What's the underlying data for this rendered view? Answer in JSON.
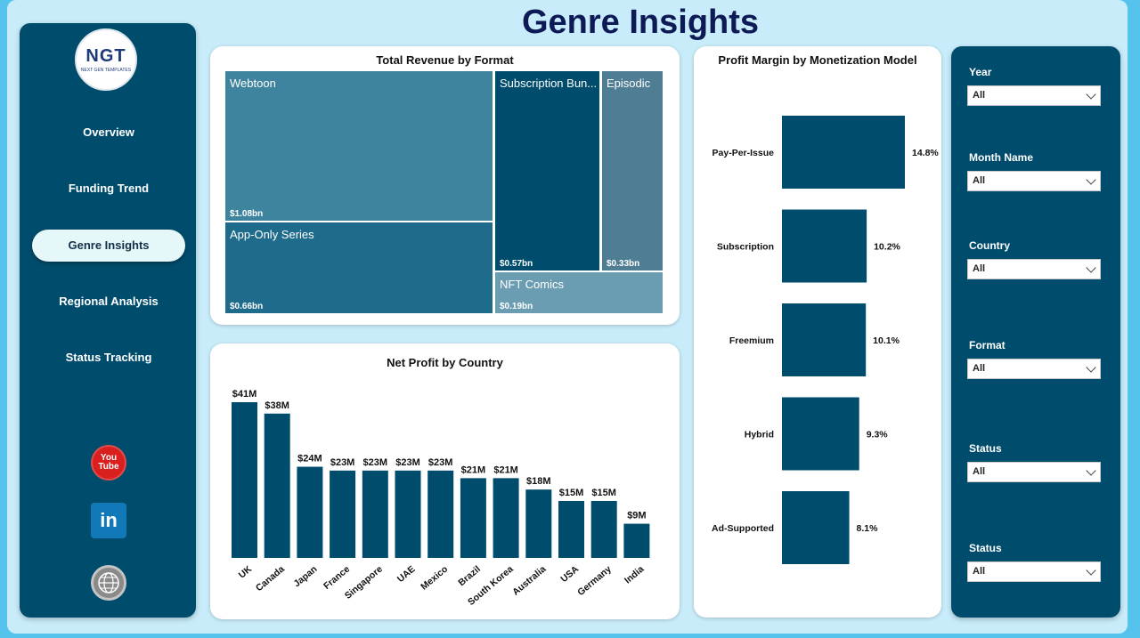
{
  "page": {
    "title": "Genre Insights"
  },
  "logo": {
    "main": "NGT",
    "sub": "NEXT GEN TEMPLATES"
  },
  "nav": {
    "items": [
      {
        "label": "Overview",
        "active": false
      },
      {
        "label": "Funding Trend",
        "active": false
      },
      {
        "label": "Genre Insights",
        "active": true
      },
      {
        "label": "Regional Analysis",
        "active": false
      },
      {
        "label": "Status Tracking",
        "active": false
      }
    ]
  },
  "social": {
    "youtube_top": "You",
    "youtube_bottom": "Tube",
    "linkedin": "in"
  },
  "treemap": {
    "title": "Total Revenue by Format",
    "cells": [
      {
        "label": "Webtoon",
        "value": "$1.08bn",
        "color": "#3f849f"
      },
      {
        "label": "App-Only Series",
        "value": "$0.66bn",
        "color": "#1e6b8c"
      },
      {
        "label": "Subscription Bun...",
        "value": "$0.57bn",
        "color": "#004c6d"
      },
      {
        "label": "Episodic",
        "value": "$0.33bn",
        "color": "#4f7d94"
      },
      {
        "label": "NFT Comics",
        "value": "$0.19bn",
        "color": "#6b9db2"
      }
    ]
  },
  "chart_data": [
    {
      "type": "bar",
      "title": "Net Profit by Country",
      "categories": [
        "UK",
        "Canada",
        "Japan",
        "France",
        "Singapore",
        "UAE",
        "Mexico",
        "Brazil",
        "South Korea",
        "Australia",
        "USA",
        "Germany",
        "India"
      ],
      "values": [
        41,
        38,
        24,
        23,
        23,
        23,
        23,
        21,
        21,
        18,
        15,
        15,
        9
      ],
      "data_labels": [
        "$41M",
        "$38M",
        "$24M",
        "$23M",
        "$23M",
        "$23M",
        "$23M",
        "$21M",
        "$21M",
        "$18M",
        "$15M",
        "$15M",
        "$9M"
      ],
      "color": "#004c6d",
      "ylim": [
        0,
        41
      ]
    },
    {
      "type": "bar",
      "orientation": "horizontal",
      "title": "Profit Margin by Monetization Model",
      "categories": [
        "Pay-Per-Issue",
        "Subscription",
        "Freemium",
        "Hybrid",
        "Ad-Supported"
      ],
      "values": [
        14.8,
        10.2,
        10.1,
        9.3,
        8.1
      ],
      "data_labels": [
        "14.8%",
        "10.2%",
        "10.1%",
        "9.3%",
        "8.1%"
      ],
      "color": "#004c6d",
      "xlim": [
        0,
        14.8
      ]
    }
  ],
  "filters": [
    {
      "label": "Year",
      "value": "All"
    },
    {
      "label": "Month Name",
      "value": "All"
    },
    {
      "label": "Country",
      "value": "All"
    },
    {
      "label": "Format",
      "value": "All"
    },
    {
      "label": "Status",
      "value": "All"
    },
    {
      "label": "Status",
      "value": "All"
    }
  ]
}
